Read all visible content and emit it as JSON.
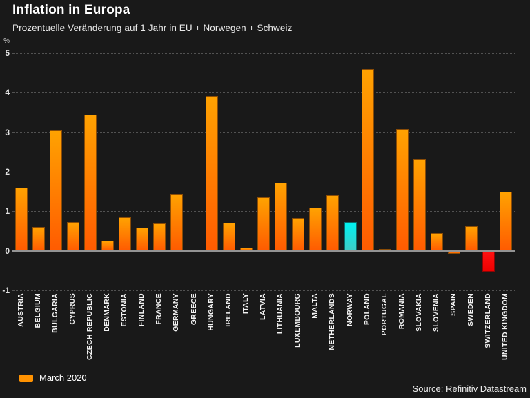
{
  "chart_data": {
    "type": "bar",
    "title": "Inflation in Europa",
    "subtitle": "Prozentuelle Veränderung auf 1 Jahr in EU + Norwegen + Schweiz",
    "unit_label": "%",
    "ylim": [
      -1,
      5
    ],
    "yticks": [
      5,
      4,
      3,
      2,
      1,
      0,
      -1
    ],
    "grid": "horizontal-dotted",
    "categories": [
      "AUSTRIA",
      "BELGIUM",
      "BULGARIA",
      "CYPRUS",
      "CZECH REPUBLIC",
      "DENMARK",
      "ESTONIA",
      "FINLAND",
      "FRANCE",
      "GERMANY",
      "GREECE",
      "HUNGARY",
      "IRELAND",
      "ITALY",
      "LATVIA",
      "LITHUANIA",
      "LUXEMBOURG",
      "MALTA",
      "NETHERLANDS",
      "NORWAY",
      "POLAND",
      "PORTUGAL",
      "ROMANIA",
      "SLOVAKIA",
      "SLOVENIA",
      "SPAIN",
      "SWEDEN",
      "SWITZERLAND",
      "UNITED KINGDOM"
    ],
    "values": [
      1.6,
      0.61,
      3.04,
      0.72,
      3.45,
      0.26,
      0.85,
      0.58,
      0.7,
      1.44,
      0.02,
      3.92,
      0.71,
      0.08,
      1.35,
      1.72,
      0.84,
      1.1,
      1.4,
      0.72,
      4.6,
      0.04,
      3.08,
      2.32,
      0.45,
      -0.08,
      0.62,
      -0.53,
      1.5
    ],
    "bar_color_keys": {
      "default": "orange",
      "NORWAY": "cyan",
      "SWITZERLAND": "red"
    },
    "palette": {
      "orange": {
        "top": "#ffa201",
        "bottom": "#ff5b01",
        "border": "#8a4c06"
      },
      "cyan": {
        "top": "#00f1f1",
        "bottom": "#3ecdc7",
        "border": "#0b6a6a"
      },
      "red": {
        "top": "#ff1212",
        "bottom": "#ee0000",
        "border": "#8a0606"
      }
    },
    "background_color": "#191919",
    "gridline_color": "#525252",
    "zero_axis_color": "#939393",
    "legend": {
      "position": "bottom-left",
      "items": [
        {
          "label": "March 2020",
          "color": "#ff9201"
        }
      ]
    },
    "source": "Source: Refinitiv Datastream"
  }
}
